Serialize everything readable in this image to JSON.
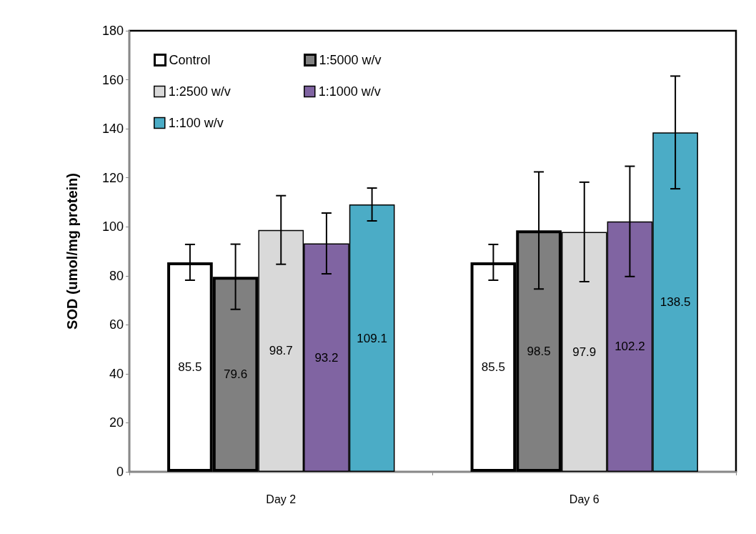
{
  "chart_data": {
    "type": "bar",
    "ylabel": "SOD (umol/mg protein)",
    "categories": [
      "Day 2",
      "Day 6"
    ],
    "series": [
      {
        "name": "Control",
        "color": "#ffffff",
        "values": [
          85.5,
          85.5
        ],
        "errors": [
          7.3,
          7.3
        ]
      },
      {
        "name": "1:5000 w/v",
        "color": "#808080",
        "values": [
          79.6,
          98.5
        ],
        "errors": [
          13.3,
          23.9
        ]
      },
      {
        "name": "1:2500 w/v",
        "color": "#d9d9d9",
        "values": [
          98.7,
          97.9
        ],
        "errors": [
          14,
          20.3
        ]
      },
      {
        "name": "1:1000 w/v",
        "color": "#8064a2",
        "values": [
          93.2,
          102.2
        ],
        "errors": [
          12.4,
          22.5
        ]
      },
      {
        "name": "1:100 w/v",
        "color": "#4bacc6",
        "values": [
          109.1,
          138.5
        ],
        "errors": [
          6.7,
          23
        ]
      }
    ],
    "ylim": [
      0,
      180
    ],
    "yticks": [
      0,
      20,
      40,
      60,
      80,
      100,
      120,
      140,
      160,
      180
    ],
    "data_labels": true,
    "grid": false,
    "legend": "top left"
  }
}
